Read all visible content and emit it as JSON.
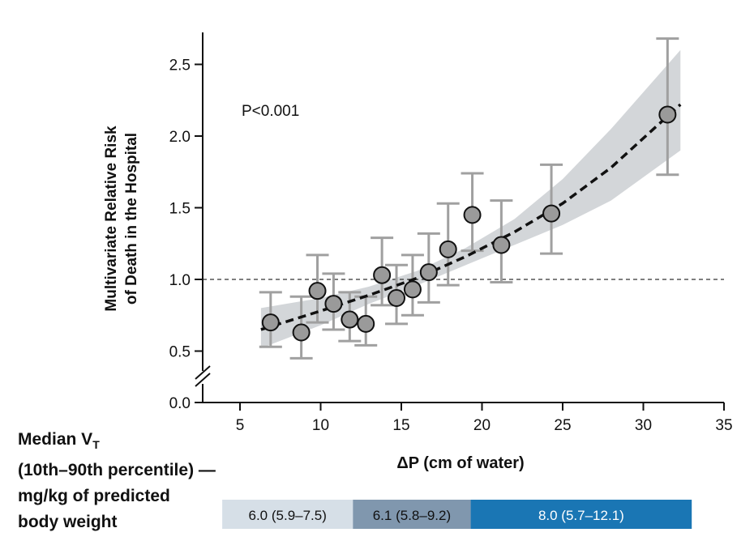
{
  "chart_data": {
    "type": "scatter",
    "ylabel_lines": [
      "Multivariate Relative Risk",
      "of Death in the Hospital"
    ],
    "xlabel": "ΔP (cm of water)",
    "annotation": "P<0.001",
    "xlim": [
      2.6,
      35
    ],
    "ylim": [
      0.0,
      2.7
    ],
    "y_axis_break": true,
    "x_ticks": [
      5,
      10,
      15,
      20,
      25,
      30,
      35
    ],
    "y_ticks": [
      "0.0",
      "0.5",
      "1.0",
      "1.5",
      "2.0",
      "2.5"
    ],
    "reference_line": 1.0,
    "points": [
      {
        "x": 6.9,
        "y": 0.7,
        "lo": 0.53,
        "hi": 0.91
      },
      {
        "x": 8.8,
        "y": 0.63,
        "lo": 0.45,
        "hi": 0.88
      },
      {
        "x": 9.8,
        "y": 0.92,
        "lo": 0.7,
        "hi": 1.17
      },
      {
        "x": 10.8,
        "y": 0.83,
        "lo": 0.65,
        "hi": 1.04
      },
      {
        "x": 11.8,
        "y": 0.72,
        "lo": 0.57,
        "hi": 0.91
      },
      {
        "x": 12.8,
        "y": 0.69,
        "lo": 0.54,
        "hi": 0.88
      },
      {
        "x": 13.8,
        "y": 1.03,
        "lo": 0.82,
        "hi": 1.29
      },
      {
        "x": 14.7,
        "y": 0.87,
        "lo": 0.69,
        "hi": 1.1
      },
      {
        "x": 15.7,
        "y": 0.93,
        "lo": 0.75,
        "hi": 1.17
      },
      {
        "x": 16.7,
        "y": 1.05,
        "lo": 0.84,
        "hi": 1.32
      },
      {
        "x": 17.9,
        "y": 1.21,
        "lo": 0.96,
        "hi": 1.53
      },
      {
        "x": 19.4,
        "y": 1.45,
        "lo": 1.2,
        "hi": 1.74
      },
      {
        "x": 21.2,
        "y": 1.24,
        "lo": 0.98,
        "hi": 1.55
      },
      {
        "x": 24.3,
        "y": 1.46,
        "lo": 1.18,
        "hi": 1.8
      },
      {
        "x": 31.5,
        "y": 2.15,
        "lo": 1.73,
        "hi": 2.68
      }
    ],
    "fit_curve": [
      {
        "x": 6.3,
        "y": 0.65,
        "lo": 0.52,
        "hi": 0.8
      },
      {
        "x": 10,
        "y": 0.78,
        "lo": 0.68,
        "hi": 0.87
      },
      {
        "x": 13,
        "y": 0.89,
        "lo": 0.83,
        "hi": 0.95
      },
      {
        "x": 16,
        "y": 1.01,
        "lo": 0.96,
        "hi": 1.06
      },
      {
        "x": 19,
        "y": 1.16,
        "lo": 1.1,
        "hi": 1.22
      },
      {
        "x": 22,
        "y": 1.33,
        "lo": 1.24,
        "hi": 1.42
      },
      {
        "x": 25,
        "y": 1.53,
        "lo": 1.38,
        "hi": 1.7
      },
      {
        "x": 28,
        "y": 1.78,
        "lo": 1.55,
        "hi": 2.05
      },
      {
        "x": 32.3,
        "y": 2.22,
        "lo": 1.9,
        "hi": 2.6
      }
    ],
    "colors": {
      "point": "#9a9a9a",
      "errorbar": "#a0a0a0",
      "band": "#d3d6d9"
    }
  },
  "vt_panel": {
    "label_lines": [
      "Median V",
      "(10th–90th percentile) —",
      "mg/kg of predicted",
      "body weight"
    ],
    "label_subscript": "T",
    "segments": [
      {
        "label": "6.0 (5.9–7.5)",
        "from": 3.9,
        "to": 12.0,
        "color": "#d6dfe7",
        "text_color": "#111111"
      },
      {
        "label": "6.1 (5.8–9.2)",
        "from": 12.0,
        "to": 19.3,
        "color": "#8097ae",
        "text_color": "#111111"
      },
      {
        "label": "8.0 (5.7–12.1)",
        "from": 19.3,
        "to": 33.0,
        "color": "#1a76b4",
        "text_color": "#ffffff"
      }
    ]
  }
}
